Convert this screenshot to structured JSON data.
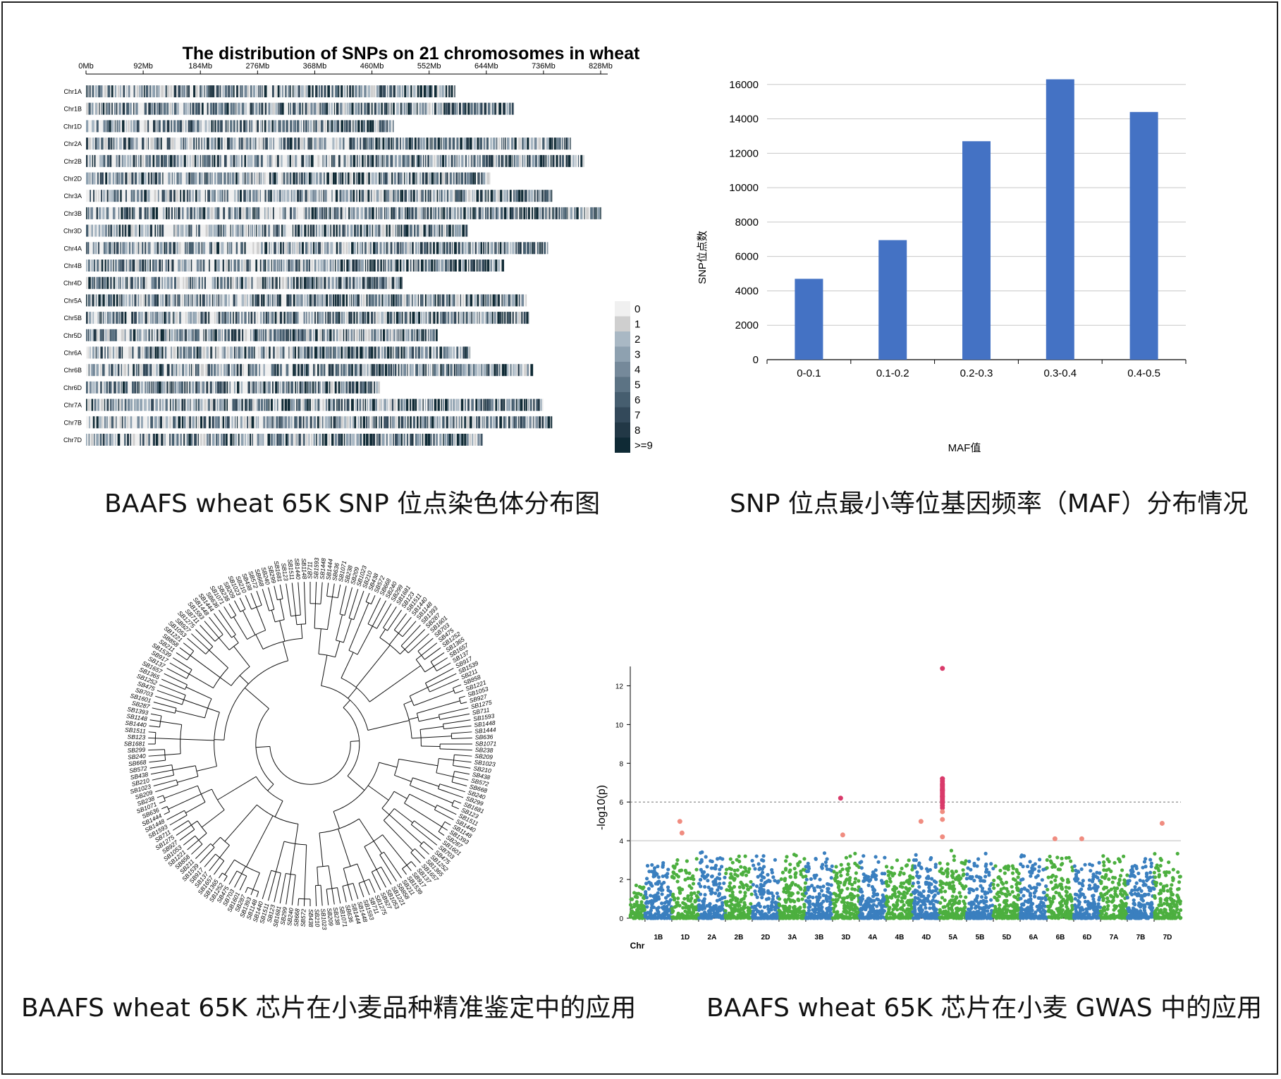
{
  "captions": {
    "top_left": "BAAFS wheat 65K SNP 位点染色体分布图",
    "top_right": "SNP 位点最小等位基因频率（MAF）分布情况",
    "bottom_left": "BAAFS wheat 65K  芯片在小麦品种精准鉴定中的应用",
    "bottom_right": "BAAFS wheat 65K  芯片在小麦 GWAS 中的应用"
  },
  "chart_data": [
    {
      "type": "heatmap",
      "title": "The distribution of SNPs on 21 chromosomes in wheat",
      "x_ticks": [
        "0Mb",
        "92Mb",
        "184Mb",
        "276Mb",
        "368Mb",
        "460Mb",
        "552Mb",
        "644Mb",
        "736Mb",
        "828Mb"
      ],
      "x_range_mb": [
        0,
        828
      ],
      "chromosomes": [
        "Chr1A",
        "Chr1B",
        "Chr1D",
        "Chr2A",
        "Chr2B",
        "Chr2D",
        "Chr3A",
        "Chr3B",
        "Chr3D",
        "Chr4A",
        "Chr4B",
        "Chr4D",
        "Chr5A",
        "Chr5B",
        "Chr5D",
        "Chr6A",
        "Chr6B",
        "Chr6D",
        "Chr7A",
        "Chr7B",
        "Chr7D"
      ],
      "lengths_mb": [
        594,
        689,
        495,
        780,
        801,
        651,
        750,
        830,
        615,
        744,
        673,
        509,
        709,
        713,
        566,
        618,
        720,
        473,
        736,
        750,
        638
      ],
      "legend": [
        "0",
        "1",
        "2",
        "3",
        "4",
        "5",
        "6",
        "7",
        "8",
        ">=9"
      ],
      "legend_colors": [
        "#f0f0f0",
        "#cfcfcf",
        "#a9b8c4",
        "#8ea1b0",
        "#75899a",
        "#5c7384",
        "#465e6f",
        "#33495a",
        "#223846",
        "#0f2a35"
      ]
    },
    {
      "type": "bar",
      "categories": [
        "0-0.1",
        "0.1-0.2",
        "0.2-0.3",
        "0.3-0.4",
        "0.4-0.5"
      ],
      "values": [
        4700,
        6950,
        12700,
        16300,
        14400
      ],
      "xlabel": "MAF值",
      "ylabel": "SNP位点数",
      "ylim": [
        0,
        16000
      ],
      "y_ticks": [
        0,
        2000,
        4000,
        6000,
        8000,
        10000,
        12000,
        14000,
        16000
      ],
      "bar_color": "#4472c4"
    },
    {
      "type": "scatter",
      "subtype": "manhattan",
      "xlabel": "Chr",
      "ylabel": "-log10(p)",
      "ylim": [
        0,
        13
      ],
      "y_ticks": [
        0,
        2,
        4,
        6,
        8,
        10,
        12
      ],
      "chromosomes": [
        "1B",
        "1D",
        "2A",
        "2B",
        "2D",
        "3A",
        "3B",
        "3D",
        "4A",
        "4B",
        "4D",
        "5A",
        "5B",
        "5D",
        "6A",
        "6B",
        "6D",
        "7A",
        "7B",
        "7D"
      ],
      "threshold_significant": 6,
      "threshold_suggestive": 4,
      "colors": {
        "blue": "#3a7fbf",
        "green": "#4caf3f",
        "salmon": "#f08c80",
        "crimson": "#d93a6a"
      },
      "top_hits": [
        {
          "chr": "5A",
          "value": 12.9
        },
        {
          "chr": "5A",
          "value": 7.2
        },
        {
          "chr": "5A",
          "value": 6.9
        },
        {
          "chr": "5A",
          "value": 6.6
        },
        {
          "chr": "5A",
          "value": 6.3
        },
        {
          "chr": "3D",
          "value": 6.2
        },
        {
          "chr": "5A",
          "value": 5.5
        },
        {
          "chr": "5A",
          "value": 5.1
        },
        {
          "chr": "1D",
          "value": 5.0
        },
        {
          "chr": "4D",
          "value": 5.0
        },
        {
          "chr": "7D",
          "value": 4.9
        },
        {
          "chr": "1D",
          "value": 4.4
        },
        {
          "chr": "3D",
          "value": 4.3
        },
        {
          "chr": "5A",
          "value": 4.2
        },
        {
          "chr": "6B",
          "value": 4.1
        },
        {
          "chr": "6D",
          "value": 4.1
        }
      ]
    },
    {
      "type": "other",
      "subtype": "circular-dendrogram",
      "leaf_labels": [
        "SB711",
        "SB1593",
        "SB1448",
        "SB1444",
        "SB636",
        "SB1071",
        "SB238",
        "SB209",
        "SB1023",
        "SB210",
        "SB438",
        "SB572",
        "SB668",
        "SB240",
        "SB299",
        "SB1681",
        "SB123",
        "SB1511",
        "SB1440",
        "SB1148",
        "SB1393",
        "SB287",
        "SB1601",
        "SB703",
        "SB475",
        "SB1252",
        "SB1365",
        "SB1657",
        "SB137",
        "SB917",
        "SB1539",
        "SB211",
        "SB858",
        "SB1221",
        "SB1053",
        "SB927",
        "SB1275"
      ]
    }
  ]
}
